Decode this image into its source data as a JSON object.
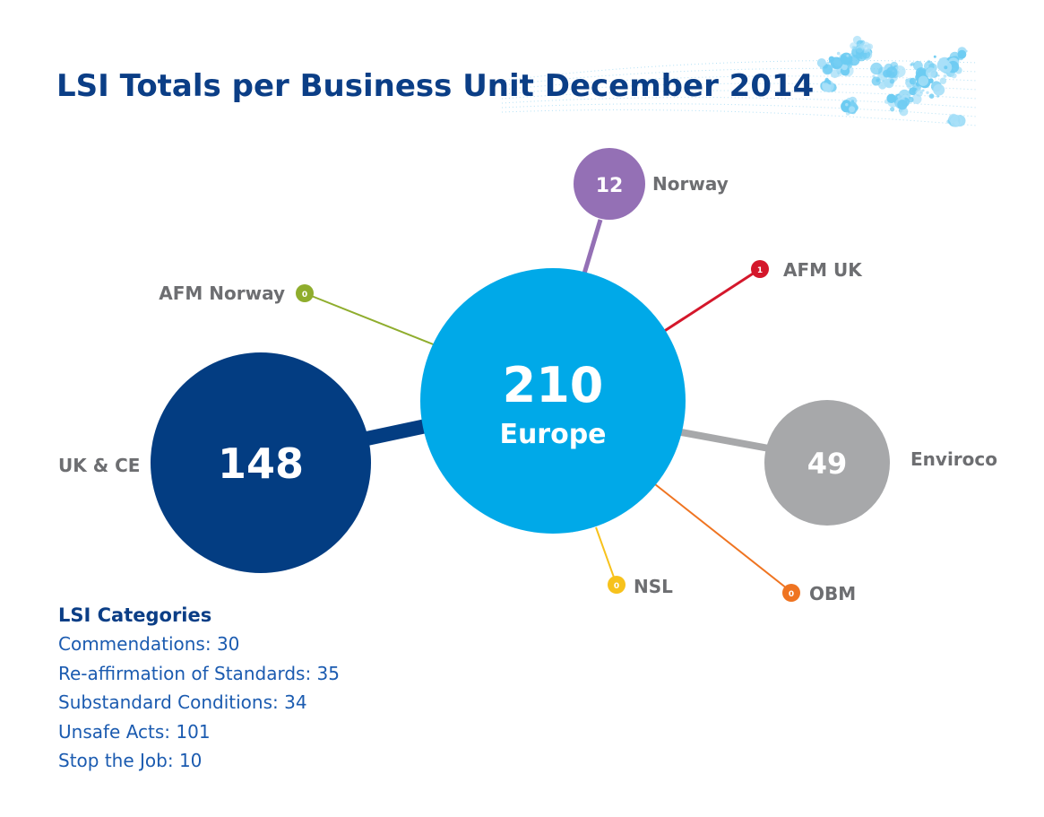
{
  "title": "LSI Totals per Business Unit December 2014",
  "hub": {
    "value": "210",
    "label": "Europe",
    "color": "#00a9e8"
  },
  "units": [
    {
      "id": "uk-ce",
      "value": "148",
      "name": "UK & CE",
      "color": "#033d82"
    },
    {
      "id": "norway",
      "value": "12",
      "name": "Norway",
      "color": "#9470b5"
    },
    {
      "id": "afm-uk",
      "value": "1",
      "name": "AFM UK",
      "color": "#d4172b"
    },
    {
      "id": "afm-norway",
      "value": "0",
      "name": "AFM Norway",
      "color": "#8fad2d"
    },
    {
      "id": "enviroco",
      "value": "49",
      "name": "Enviroco",
      "color": "#a7a8aa"
    },
    {
      "id": "nsl",
      "value": "0",
      "name": "NSL",
      "color": "#f7c21c"
    },
    {
      "id": "obm",
      "value": "0",
      "name": "OBM",
      "color": "#ef7421"
    }
  ],
  "categories": {
    "title": "LSI Categories",
    "items": [
      {
        "name": "Commendations",
        "value": "30"
      },
      {
        "name": "Re-affirmation of Standards",
        "value": "35"
      },
      {
        "name": "Substandard Conditions",
        "value": "34"
      },
      {
        "name": "Unsafe Acts",
        "value": "101"
      },
      {
        "name": "Stop the Job",
        "value": "10"
      }
    ]
  }
}
